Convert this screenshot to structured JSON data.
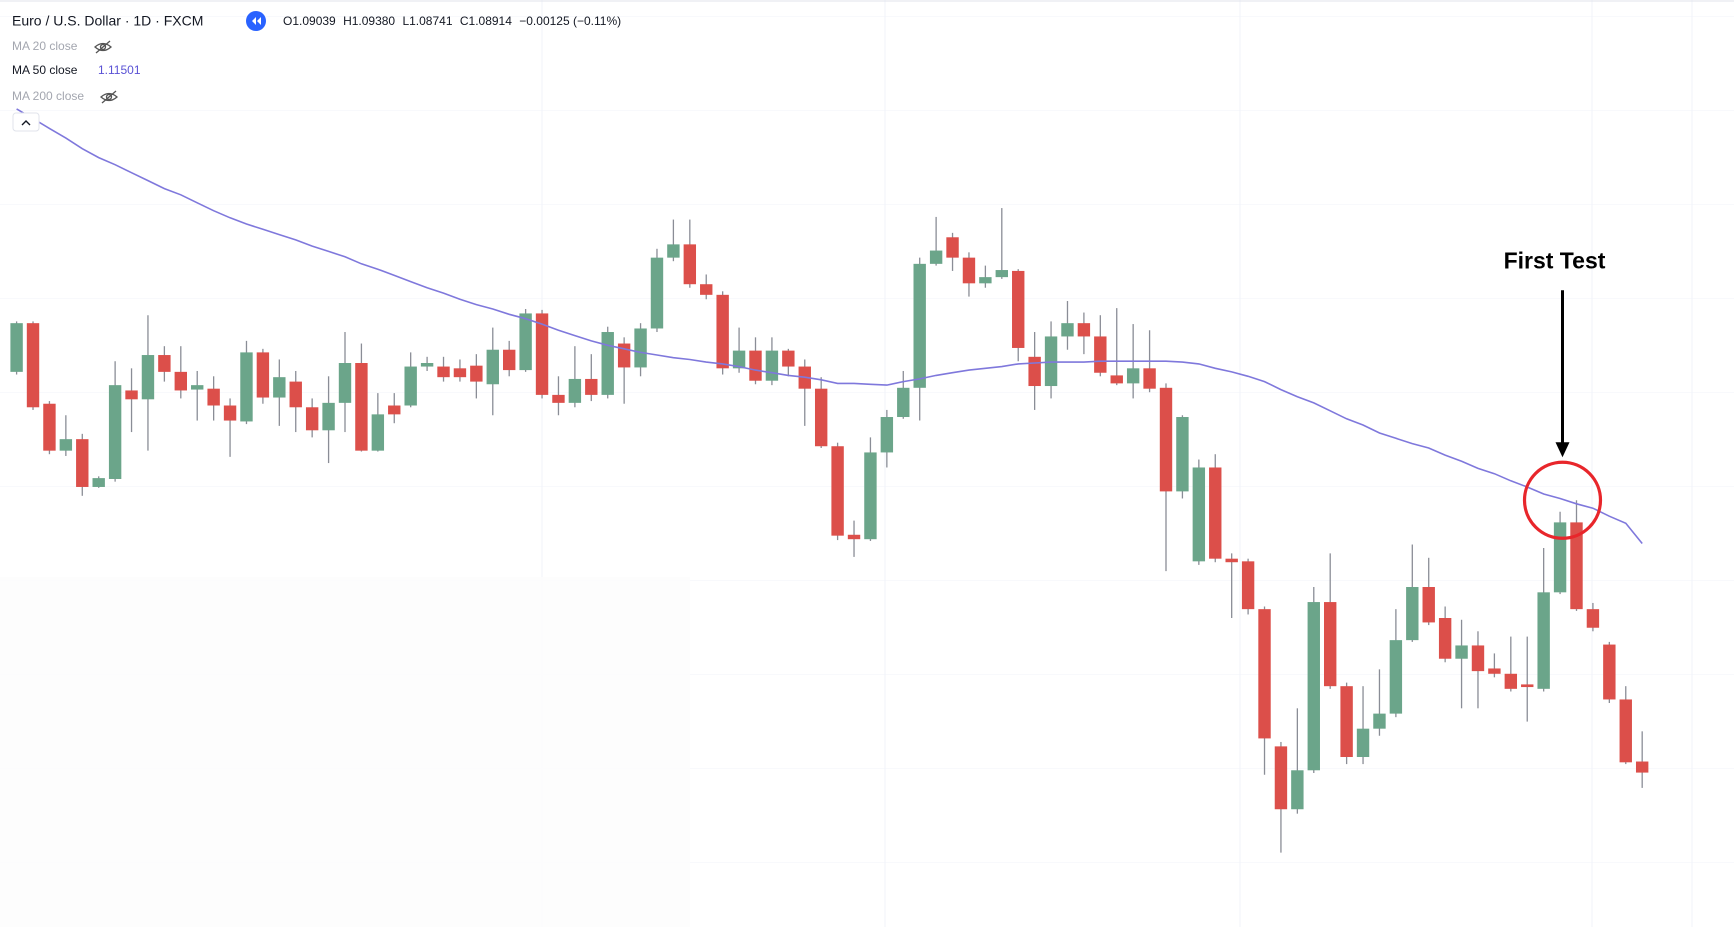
{
  "chart_data": {
    "type": "candlestick",
    "title": "Euro / U.S. Dollar · 1D · FXCM",
    "legend_ohlc": [
      "O1.09039",
      "H1.09380",
      "L1.08741",
      "C1.08914",
      "−0.00125 (−0.11%)"
    ],
    "hidden_indicators": [
      "MA 20 close",
      "MA 200 close"
    ],
    "ylim": [
      1.0717,
      1.1764
    ],
    "up_color": "#6ba58a",
    "down_color": "#dc4f4a",
    "open": [
      1.1344,
      1.1399,
      1.1308,
      1.1255,
      1.1268,
      1.1214,
      1.1223,
      1.1323,
      1.1313,
      1.1363,
      1.1344,
      1.1324,
      1.1325,
      1.1306,
      1.1288,
      1.1366,
      1.1315,
      1.1333,
      1.1304,
      1.1278,
      1.1309,
      1.1354,
      1.1255,
      1.1306,
      1.1306,
      1.135,
      1.135,
      1.1348,
      1.1351,
      1.133,
      1.1369,
      1.1346,
      1.141,
      1.1318,
      1.1309,
      1.1336,
      1.1318,
      1.1376,
      1.1349,
      1.1393,
      1.1473,
      1.1488,
      1.1443,
      1.1431,
      1.1348,
      1.1368,
      1.1334,
      1.1368,
      1.135,
      1.1325,
      1.126,
      1.116,
      1.1155,
      1.1253,
      1.1293,
      1.1326,
      1.1466,
      1.1496,
      1.1473,
      1.1444,
      1.1451,
      1.1458,
      1.1361,
      1.1328,
      1.1384,
      1.1399,
      1.1384,
      1.134,
      1.1331,
      1.1348,
      1.1326,
      1.1209,
      1.113,
      1.1236,
      1.1133,
      1.113,
      1.1076,
      1.0921,
      1.085,
      1.0894,
      1.1084,
      1.0989,
      1.0909,
      1.0941,
      1.0958,
      1.1041,
      1.1101,
      1.1066,
      1.102,
      1.1035,
      1.1009,
      1.1003,
      1.0991,
      1.0986,
      1.1095,
      1.1174,
      1.1076,
      1.1036,
      1.0974,
      1.09039
    ],
    "high": [
      1.1401,
      1.1401,
      1.1311,
      1.1295,
      1.1274,
      1.1226,
      1.1356,
      1.1348,
      1.1408,
      1.1373,
      1.1373,
      1.1345,
      1.1339,
      1.1314,
      1.1379,
      1.137,
      1.1358,
      1.1345,
      1.1314,
      1.1339,
      1.1389,
      1.1376,
      1.132,
      1.132,
      1.1366,
      1.1361,
      1.1361,
      1.1358,
      1.1364,
      1.1394,
      1.1379,
      1.1415,
      1.1414,
      1.1339,
      1.1373,
      1.1364,
      1.1395,
      1.1383,
      1.1399,
      1.1483,
      1.1516,
      1.1516,
      1.1454,
      1.1435,
      1.1394,
      1.1383,
      1.1383,
      1.137,
      1.1358,
      1.1338,
      1.1264,
      1.1176,
      1.127,
      1.1301,
      1.1345,
      1.1473,
      1.1519,
      1.1501,
      1.1479,
      1.1464,
      1.1529,
      1.146,
      1.1389,
      1.1401,
      1.1424,
      1.1411,
      1.1408,
      1.1416,
      1.1398,
      1.1391,
      1.1331,
      1.1295,
      1.1245,
      1.1251,
      1.1139,
      1.1133,
      1.1079,
      1.0926,
      1.0964,
      1.1101,
      1.1139,
      1.0993,
      1.0989,
      1.1008,
      1.1076,
      1.1149,
      1.1134,
      1.1079,
      1.1064,
      1.1051,
      1.1026,
      1.1045,
      1.1045,
      1.1145,
      1.1186,
      1.1199,
      1.1083,
      1.1039,
      1.0989,
      1.0938
    ],
    "low": [
      1.1341,
      1.1301,
      1.1251,
      1.1249,
      1.1204,
      1.1213,
      1.122,
      1.1276,
      1.1255,
      1.1333,
      1.1314,
      1.1289,
      1.1289,
      1.1248,
      1.1285,
      1.1308,
      1.1283,
      1.1276,
      1.127,
      1.1241,
      1.1276,
      1.1254,
      1.1254,
      1.1286,
      1.1304,
      1.1345,
      1.1333,
      1.1333,
      1.1314,
      1.1295,
      1.1339,
      1.1344,
      1.1314,
      1.1295,
      1.1304,
      1.1311,
      1.1314,
      1.1308,
      1.1339,
      1.1389,
      1.1469,
      1.1439,
      1.1426,
      1.1341,
      1.1343,
      1.133,
      1.1329,
      1.1339,
      1.1283,
      1.1258,
      1.1154,
      1.1135,
      1.1153,
      1.1236,
      1.1291,
      1.1289,
      1.1464,
      1.1458,
      1.1429,
      1.1439,
      1.1449,
      1.1356,
      1.1301,
      1.1314,
      1.1369,
      1.1364,
      1.1339,
      1.1329,
      1.1314,
      1.1321,
      1.1119,
      1.1201,
      1.1126,
      1.1129,
      1.1066,
      1.107,
      1.0889,
      1.0801,
      1.0845,
      1.0891,
      1.0986,
      1.0901,
      1.0901,
      1.0933,
      1.0954,
      1.1039,
      1.1058,
      1.1016,
      1.0964,
      1.0964,
      1.0999,
      1.0983,
      1.0949,
      1.0983,
      1.1093,
      1.1074,
      1.1051,
      1.097,
      1.0901,
      1.08741
    ],
    "close": [
      1.1399,
      1.1304,
      1.1255,
      1.1268,
      1.1214,
      1.1224,
      1.1329,
      1.1313,
      1.1363,
      1.1344,
      1.1323,
      1.1329,
      1.1306,
      1.1289,
      1.1366,
      1.1315,
      1.1338,
      1.1304,
      1.1278,
      1.1309,
      1.1354,
      1.1255,
      1.1296,
      1.1296,
      1.135,
      1.1354,
      1.1338,
      1.1338,
      1.1333,
      1.1369,
      1.1346,
      1.141,
      1.1318,
      1.1309,
      1.1336,
      1.1318,
      1.1389,
      1.1349,
      1.1393,
      1.1473,
      1.1488,
      1.1443,
      1.1431,
      1.1348,
      1.1368,
      1.1334,
      1.1368,
      1.135,
      1.1325,
      1.126,
      1.1159,
      1.1155,
      1.1253,
      1.1293,
      1.1326,
      1.1466,
      1.1481,
      1.1473,
      1.1444,
      1.1451,
      1.1459,
      1.1371,
      1.1328,
      1.1384,
      1.1399,
      1.1384,
      1.1343,
      1.1331,
      1.1348,
      1.1325,
      1.1209,
      1.1293,
      1.1236,
      1.1133,
      1.1129,
      1.1076,
      1.093,
      1.085,
      1.0894,
      1.1084,
      1.0989,
      1.0909,
      1.0941,
      1.0958,
      1.1041,
      1.1101,
      1.1061,
      1.102,
      1.1035,
      1.1006,
      1.1003,
      1.0986,
      1.0988,
      1.1095,
      1.1174,
      1.1076,
      1.1055,
      1.0974,
      1.0903,
      1.08914
    ],
    "series": [
      {
        "name": "MA 50 close",
        "color": "#7f78dc",
        "value_label": "1.11501",
        "values": [
          1.1641,
          1.163,
          1.1619,
          1.1608,
          1.1596,
          1.1586,
          1.1578,
          1.1569,
          1.156,
          1.1551,
          1.1544,
          1.1535,
          1.1526,
          1.1518,
          1.1511,
          1.1505,
          1.1499,
          1.1493,
          1.1486,
          1.148,
          1.1474,
          1.1466,
          1.146,
          1.1453,
          1.1446,
          1.1439,
          1.1433,
          1.1426,
          1.142,
          1.1415,
          1.1409,
          1.1404,
          1.1398,
          1.1391,
          1.1385,
          1.1379,
          1.1374,
          1.137,
          1.1366,
          1.1363,
          1.136,
          1.1358,
          1.1355,
          1.1353,
          1.135,
          1.1346,
          1.1343,
          1.134,
          1.1338,
          1.1335,
          1.1331,
          1.1331,
          1.133,
          1.1329,
          1.1333,
          1.1336,
          1.134,
          1.1343,
          1.1346,
          1.1348,
          1.135,
          1.1353,
          1.1354,
          1.1355,
          1.1355,
          1.1355,
          1.1356,
          1.1356,
          1.1356,
          1.1356,
          1.1356,
          1.1355,
          1.1353,
          1.1348,
          1.1344,
          1.1339,
          1.1333,
          1.1324,
          1.1316,
          1.1309,
          1.13,
          1.1291,
          1.1284,
          1.1275,
          1.1269,
          1.1263,
          1.1258,
          1.125,
          1.1243,
          1.1235,
          1.1229,
          1.1221,
          1.1214,
          1.1206,
          1.1201,
          1.1195,
          1.119,
          1.1181,
          1.1173,
          1.11501
        ]
      }
    ],
    "annotation": {
      "text": "First Test",
      "at": 95
    }
  }
}
